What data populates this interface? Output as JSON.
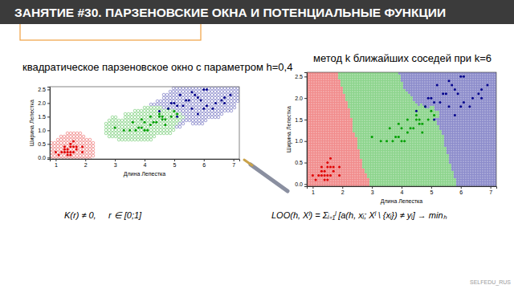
{
  "header": {
    "title": "ЗАНЯТИЕ #30. ПАРЗЕНОВСКИЕ ОКНА И ПОТЕНЦИАЛЬНЫЕ ФУНКЦИИ"
  },
  "chart_data": [
    {
      "type": "scatter",
      "title": "квадратическое парзеновское окно с параметром h=0,4",
      "h": 0.4,
      "x_label": "Длина Лепестка",
      "y_label": "Ширина Лепестка",
      "xlim": [
        0.8,
        7.2
      ],
      "ylim": [
        -0.05,
        2.6
      ],
      "xticks": [
        1,
        2,
        3,
        4,
        5,
        6,
        7
      ],
      "yticks": [
        {
          "value": 0,
          "label": "0.0"
        },
        0.5,
        {
          "value": 1,
          "label": "1.0"
        },
        1.5,
        {
          "value": 2,
          "label": "2.0"
        },
        2.5
      ],
      "series": [
        {
          "color": "#e00000",
          "marker": "circle",
          "x": [
            1.4,
            1.3,
            1.5,
            1.7,
            1.4,
            1.5,
            1.6,
            1.1,
            1.2,
            1.5,
            1.3,
            1.7,
            1.0,
            1.9,
            1.6,
            1.6,
            1.9,
            1.4,
            1.5,
            1.3
          ],
          "values": [
            0.2,
            0.2,
            0.2,
            0.4,
            0.3,
            0.1,
            0.2,
            0.1,
            0.2,
            0.4,
            0.4,
            0.3,
            0.2,
            0.2,
            0.4,
            0.6,
            0.4,
            0.1,
            0.5,
            0.3
          ]
        },
        {
          "color": "#00a000",
          "marker": "circle",
          "x": [
            4.7,
            4.5,
            4.9,
            4.0,
            4.6,
            3.3,
            3.9,
            3.5,
            4.2,
            4.1,
            4.8,
            4.3,
            5.0,
            3.8,
            3.7,
            5.1,
            4.5,
            4.4,
            3.0,
            4.2,
            3.6,
            4.0,
            4.7,
            4.6,
            3.9
          ],
          "values": [
            1.4,
            1.5,
            1.5,
            1.3,
            1.5,
            1.0,
            1.4,
            1.0,
            1.5,
            1.0,
            1.8,
            1.3,
            1.7,
            1.1,
            1.0,
            1.6,
            1.6,
            1.3,
            1.1,
            1.2,
            1.3,
            1.0,
            1.2,
            1.4,
            1.1
          ]
        },
        {
          "color": "#00008b",
          "marker": "circle",
          "x": [
            6.0,
            5.1,
            5.9,
            5.6,
            5.8,
            6.6,
            4.5,
            6.3,
            6.1,
            5.3,
            5.5,
            5.0,
            6.7,
            6.9,
            5.7,
            4.9,
            4.8,
            5.8,
            6.4,
            5.4,
            5.2,
            6.1,
            5.6,
            5.1,
            6.0,
            6.7
          ],
          "values": [
            2.5,
            1.9,
            2.1,
            1.8,
            2.2,
            2.1,
            1.7,
            1.8,
            2.5,
            1.9,
            2.1,
            2.0,
            2.2,
            2.3,
            2.3,
            2.0,
            1.8,
            1.6,
            2.0,
            2.1,
            2.3,
            1.9,
            2.4,
            1.5,
            1.8,
            2.0
          ]
        }
      ]
    },
    {
      "type": "scatter",
      "title": "метод k ближайших соседей при k=6",
      "k": 6,
      "x_label": "Длина Лепестка",
      "y_label": "Ширина Лепестка",
      "xlim": [
        0.8,
        7.2
      ],
      "ylim": [
        -0.05,
        2.6
      ],
      "xticks": [
        1,
        2,
        3,
        4,
        5,
        6,
        7
      ],
      "yticks": [
        {
          "value": 0,
          "label": "0.0"
        },
        0.5,
        {
          "value": 1,
          "label": "1.0"
        },
        1.5,
        {
          "value": 2,
          "label": "2.0"
        },
        2.5
      ],
      "series": [
        {
          "color": "#e00000",
          "marker": "circle",
          "x": [
            1.4,
            1.3,
            1.5,
            1.7,
            1.4,
            1.5,
            1.6,
            1.1,
            1.2,
            1.5,
            1.3,
            1.7,
            1.0,
            1.9,
            1.6,
            1.6,
            1.9,
            1.4,
            1.5,
            1.3
          ],
          "values": [
            0.2,
            0.2,
            0.2,
            0.4,
            0.3,
            0.1,
            0.2,
            0.1,
            0.2,
            0.4,
            0.4,
            0.3,
            0.2,
            0.2,
            0.4,
            0.6,
            0.4,
            0.1,
            0.5,
            0.3
          ]
        },
        {
          "color": "#00a000",
          "marker": "circle",
          "x": [
            4.7,
            4.5,
            4.9,
            4.0,
            4.6,
            3.3,
            3.9,
            3.5,
            4.2,
            4.1,
            4.8,
            4.3,
            5.0,
            3.8,
            3.7,
            5.1,
            4.5,
            4.4,
            3.0,
            4.2,
            3.6,
            4.0,
            4.7,
            4.6,
            3.9
          ],
          "values": [
            1.4,
            1.5,
            1.5,
            1.3,
            1.5,
            1.0,
            1.4,
            1.0,
            1.5,
            1.0,
            1.8,
            1.3,
            1.7,
            1.1,
            1.0,
            1.6,
            1.6,
            1.3,
            1.1,
            1.2,
            1.3,
            1.0,
            1.2,
            1.4,
            1.1
          ]
        },
        {
          "color": "#00008b",
          "marker": "circle",
          "x": [
            6.0,
            5.1,
            5.9,
            5.6,
            5.8,
            6.6,
            4.5,
            6.3,
            6.1,
            5.3,
            5.5,
            5.0,
            6.7,
            6.9,
            5.7,
            4.9,
            4.8,
            5.8,
            6.4,
            5.4,
            5.2,
            6.1,
            5.6,
            5.1,
            6.0,
            6.7
          ],
          "values": [
            2.5,
            1.9,
            2.1,
            1.8,
            2.2,
            2.1,
            1.7,
            1.8,
            2.5,
            1.9,
            2.1,
            2.0,
            2.2,
            2.3,
            2.3,
            2.0,
            1.8,
            1.6,
            2.0,
            2.1,
            2.3,
            1.9,
            2.4,
            1.5,
            1.8,
            2.0
          ]
        }
      ]
    }
  ],
  "formulas": {
    "kernel": "K(r) ≠ 0,     r ∈ [0;1]",
    "loo": "LOO(h, Xˡ) = Σᵢ₌₁ˡ [a(h, xᵢ; Xˡ \\ {xᵢ}) ≠ yᵢ] → minₕ"
  },
  "watermark": "SELFEDU_RUS"
}
